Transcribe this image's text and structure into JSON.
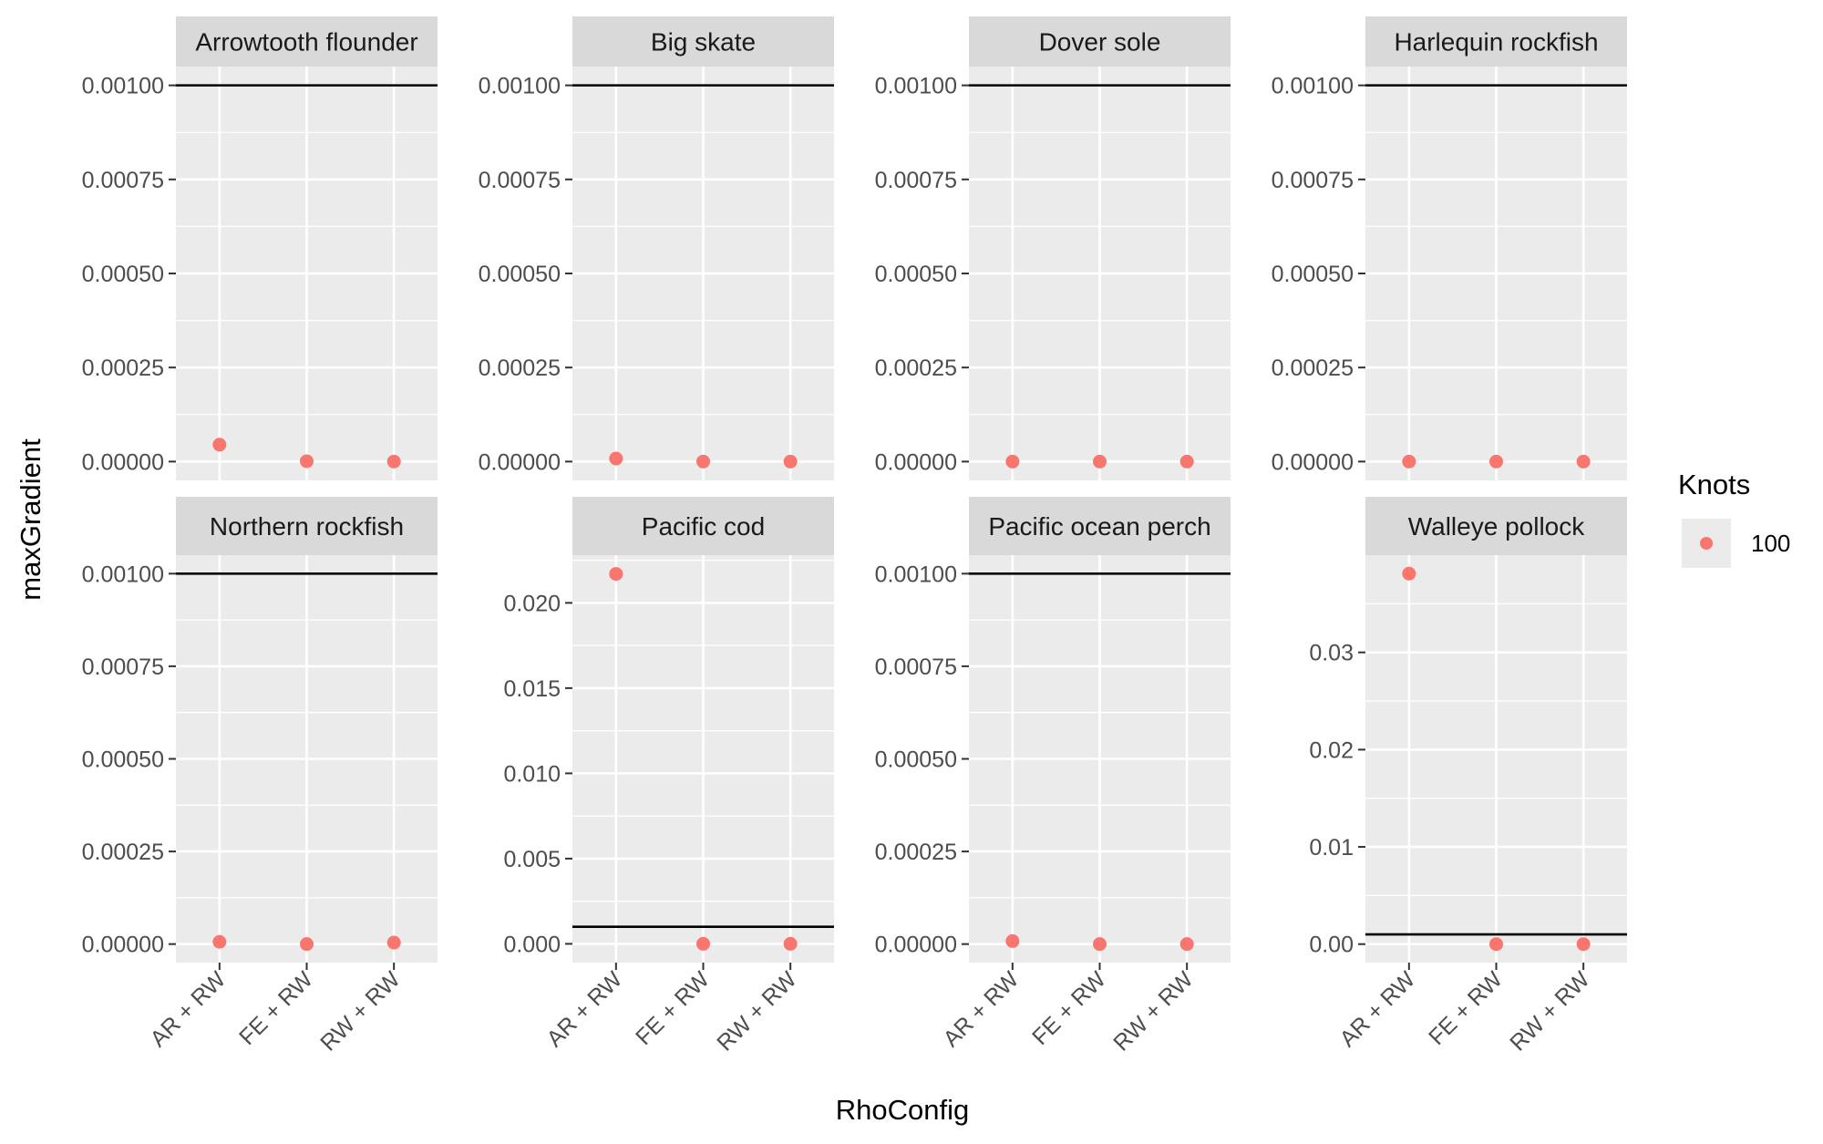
{
  "figure": {
    "xlabel": "RhoConfig",
    "ylabel": "maxGradient",
    "legend": {
      "title": "Knots",
      "placement": "right",
      "entries": [
        {
          "label": "100",
          "color": "#F8766D"
        }
      ]
    },
    "colors": {
      "panel_background": "#EBEBEB",
      "strip_background": "#D9D9D9",
      "grid": "#FFFFFF",
      "point": "#F8766D",
      "reference_line": "#000000",
      "text": "#4D4D4D"
    }
  },
  "chart_data": [
    {
      "type": "scatter",
      "title": "Arrowtooth flounder",
      "categories": [
        "AR + RW",
        "FE + RW",
        "RW + RW"
      ],
      "series": [
        {
          "name": "100",
          "values": [
            4.5e-05,
            1e-06,
            0.0
          ]
        }
      ],
      "reference_line": 0.001,
      "ylim": [
        -5e-05,
        0.00105
      ],
      "yticks": [
        0,
        0.00025,
        0.0005,
        0.00075,
        0.001
      ],
      "yticklabels": [
        "0.00000",
        "0.00025",
        "0.00050",
        "0.00075",
        "0.00100"
      ]
    },
    {
      "type": "scatter",
      "title": "Big skate",
      "categories": [
        "AR + RW",
        "FE + RW",
        "RW + RW"
      ],
      "series": [
        {
          "name": "100",
          "values": [
            8e-06,
            0.0,
            0.0
          ]
        }
      ],
      "reference_line": 0.001,
      "ylim": [
        -5e-05,
        0.00105
      ],
      "yticks": [
        0,
        0.00025,
        0.0005,
        0.00075,
        0.001
      ],
      "yticklabels": [
        "0.00000",
        "0.00025",
        "0.00050",
        "0.00075",
        "0.00100"
      ]
    },
    {
      "type": "scatter",
      "title": "Dover sole",
      "categories": [
        "AR + RW",
        "FE + RW",
        "RW + RW"
      ],
      "series": [
        {
          "name": "100",
          "values": [
            0.0,
            0.0,
            0.0
          ]
        }
      ],
      "reference_line": 0.001,
      "ylim": [
        -5e-05,
        0.00105
      ],
      "yticks": [
        0,
        0.00025,
        0.0005,
        0.00075,
        0.001
      ],
      "yticklabels": [
        "0.00000",
        "0.00025",
        "0.00050",
        "0.00075",
        "0.00100"
      ]
    },
    {
      "type": "scatter",
      "title": "Harlequin rockfish",
      "categories": [
        "AR + RW",
        "FE + RW",
        "RW + RW"
      ],
      "series": [
        {
          "name": "100",
          "values": [
            0.0,
            0.0,
            0.0
          ]
        }
      ],
      "reference_line": 0.001,
      "ylim": [
        -5e-05,
        0.00105
      ],
      "yticks": [
        0,
        0.00025,
        0.0005,
        0.00075,
        0.001
      ],
      "yticklabels": [
        "0.00000",
        "0.00025",
        "0.00050",
        "0.00075",
        "0.00100"
      ]
    },
    {
      "type": "scatter",
      "title": "Northern rockfish",
      "categories": [
        "AR + RW",
        "FE + RW",
        "RW + RW"
      ],
      "series": [
        {
          "name": "100",
          "values": [
            6e-06,
            0.0,
            4e-06
          ]
        }
      ],
      "reference_line": 0.001,
      "ylim": [
        -5e-05,
        0.00105
      ],
      "yticks": [
        0,
        0.00025,
        0.0005,
        0.00075,
        0.001
      ],
      "yticklabels": [
        "0.00000",
        "0.00025",
        "0.00050",
        "0.00075",
        "0.00100"
      ]
    },
    {
      "type": "scatter",
      "title": "Pacific cod",
      "categories": [
        "AR + RW",
        "FE + RW",
        "RW + RW"
      ],
      "series": [
        {
          "name": "100",
          "values": [
            0.0217,
            0.0,
            0.0
          ]
        }
      ],
      "reference_line": 0.001,
      "ylim": [
        -0.0011,
        0.0228
      ],
      "yticks": [
        0,
        0.005,
        0.01,
        0.015,
        0.02
      ],
      "yticklabels": [
        "0.000",
        "0.005",
        "0.010",
        "0.015",
        "0.020"
      ]
    },
    {
      "type": "scatter",
      "title": "Pacific ocean perch",
      "categories": [
        "AR + RW",
        "FE + RW",
        "RW + RW"
      ],
      "series": [
        {
          "name": "100",
          "values": [
            8e-06,
            0.0,
            0.0
          ]
        }
      ],
      "reference_line": 0.001,
      "ylim": [
        -5e-05,
        0.00105
      ],
      "yticks": [
        0,
        0.00025,
        0.0005,
        0.00075,
        0.001
      ],
      "yticklabels": [
        "0.00000",
        "0.00025",
        "0.00050",
        "0.00075",
        "0.00100"
      ]
    },
    {
      "type": "scatter",
      "title": "Walleye pollock",
      "categories": [
        "AR + RW",
        "FE + RW",
        "RW + RW"
      ],
      "series": [
        {
          "name": "100",
          "values": [
            0.0381,
            0.0,
            0.0
          ]
        }
      ],
      "reference_line": 0.001,
      "ylim": [
        -0.0019,
        0.04
      ],
      "yticks": [
        0,
        0.01,
        0.02,
        0.03
      ],
      "yticklabels": [
        "0.00",
        "0.01",
        "0.02",
        "0.03"
      ]
    }
  ]
}
